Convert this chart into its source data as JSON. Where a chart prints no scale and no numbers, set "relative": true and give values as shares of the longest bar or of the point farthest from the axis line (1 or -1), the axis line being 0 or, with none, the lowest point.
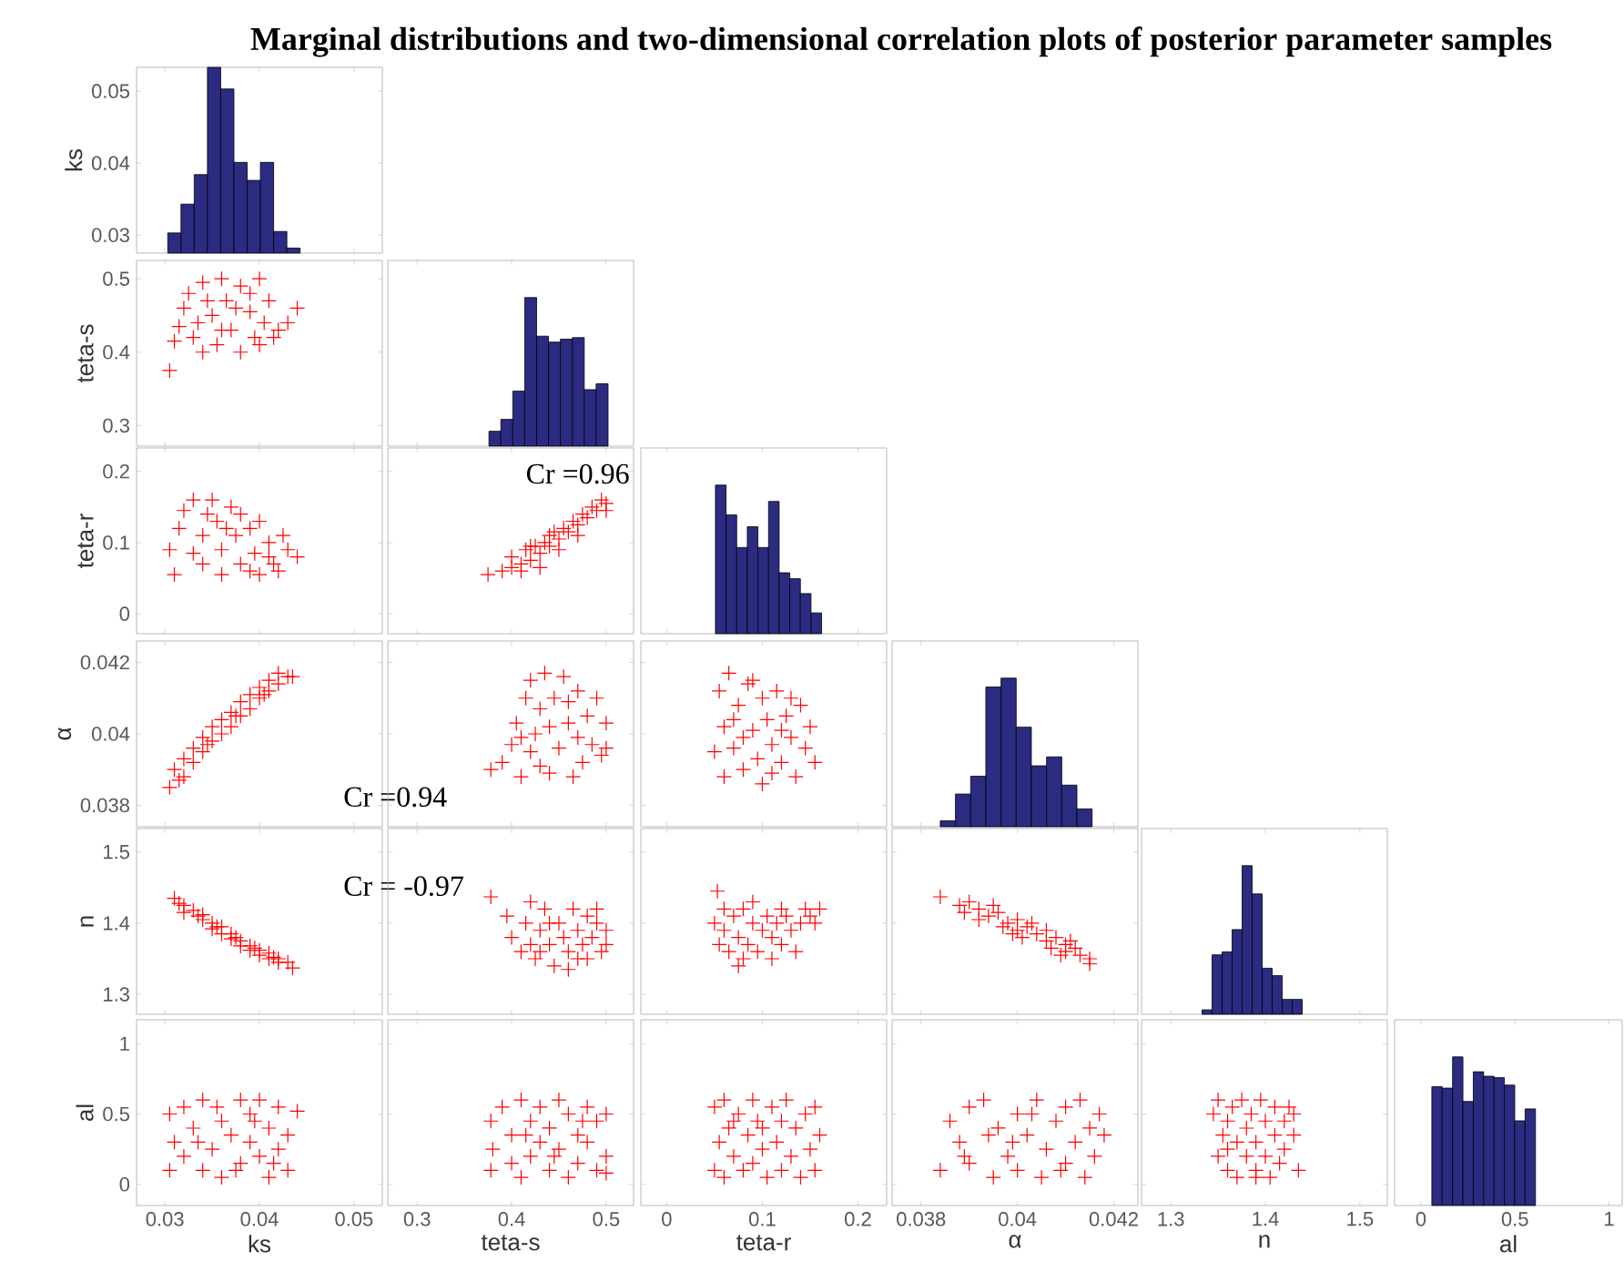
{
  "chart_data": [
    {
      "type": "other",
      "title": "Marginal distributions and two-dimensional correlation plots of posterior parameter samples"
    },
    {
      "type": "histogram",
      "ylabel": "ks",
      "bins": [
        0.0303,
        0.0317,
        0.0331,
        0.0345,
        0.0359,
        0.0373,
        0.0387,
        0.0401,
        0.0415,
        0.0429,
        0.0443
      ],
      "values": [
        0.0303,
        0.0343,
        0.0384,
        0.0533,
        0.0503,
        0.0401,
        0.0376,
        0.0401,
        0.0305,
        0.0282
      ],
      "color": "#2b2b82",
      "xlim": [
        0.027,
        0.053
      ],
      "ylim": [
        0.0275,
        0.0533
      ],
      "xticks": [
        0.03,
        0.04,
        0.05
      ],
      "yticks": [
        0.03,
        0.04,
        0.05
      ],
      "tick_labels": "y"
    },
    {
      "type": "scatter",
      "ylabel": "teta-s",
      "marker": "cross",
      "color": "#ff0000",
      "xlim": [
        0.027,
        0.053
      ],
      "ylim": [
        0.272,
        0.525
      ],
      "xticks": [
        0.03,
        0.04,
        0.05
      ],
      "yticks": [
        0.3,
        0.4,
        0.5
      ],
      "tick_labels": "y",
      "x": [
        0.0305,
        0.031,
        0.0315,
        0.032,
        0.0325,
        0.033,
        0.034,
        0.034,
        0.035,
        0.0355,
        0.036,
        0.0365,
        0.037,
        0.038,
        0.038,
        0.039,
        0.0395,
        0.04,
        0.0405,
        0.041,
        0.0415,
        0.042,
        0.043,
        0.044,
        0.0335,
        0.0375,
        0.036,
        0.039,
        0.0345,
        0.04
      ],
      "values": [
        0.375,
        0.415,
        0.435,
        0.46,
        0.48,
        0.42,
        0.4,
        0.495,
        0.45,
        0.41,
        0.5,
        0.47,
        0.43,
        0.4,
        0.49,
        0.455,
        0.42,
        0.5,
        0.44,
        0.47,
        0.42,
        0.43,
        0.44,
        0.46,
        0.44,
        0.46,
        0.43,
        0.48,
        0.47,
        0.41
      ]
    },
    {
      "type": "bar",
      "relative": true,
      "x": [
        0.3823,
        0.3949,
        0.4075,
        0.4201,
        0.4327,
        0.4453,
        0.4579,
        0.4705,
        0.4831,
        0.4957
      ],
      "values": [
        0.1,
        0.18,
        0.37,
        1,
        0.74,
        0.7,
        0.72,
        0.73,
        0.38,
        0.42
      ],
      "color": "#2b2b82",
      "xlim": [
        0.269,
        0.529
      ],
      "xticks": [
        0.3,
        0.4,
        0.5
      ],
      "tick_labels": false
    },
    {
      "type": "scatter",
      "ylabel": "teta-r",
      "marker": "cross",
      "color": "#ff0000",
      "xlim": [
        0.027,
        0.053
      ],
      "ylim": [
        -0.028,
        0.233
      ],
      "xticks": [
        0.03,
        0.04,
        0.05
      ],
      "yticks": [
        0,
        0.1,
        0.2
      ],
      "tick_labels": "y",
      "x": [
        0.031,
        0.0305,
        0.0315,
        0.032,
        0.033,
        0.034,
        0.034,
        0.035,
        0.0355,
        0.036,
        0.036,
        0.037,
        0.0375,
        0.038,
        0.038,
        0.039,
        0.0395,
        0.04,
        0.04,
        0.041,
        0.0415,
        0.042,
        0.043,
        0.044,
        0.0425,
        0.033,
        0.0365,
        0.039,
        0.0345,
        0.041
      ],
      "values": [
        0.055,
        0.09,
        0.12,
        0.145,
        0.16,
        0.11,
        0.07,
        0.16,
        0.13,
        0.09,
        0.055,
        0.15,
        0.11,
        0.07,
        0.14,
        0.12,
        0.085,
        0.055,
        0.13,
        0.1,
        0.07,
        0.06,
        0.09,
        0.08,
        0.11,
        0.085,
        0.12,
        0.06,
        0.14,
        0.08
      ]
    },
    {
      "type": "scatter",
      "marker": "cross",
      "color": "#ff0000",
      "xlim": [
        0.269,
        0.529
      ],
      "ylim": [
        -0.028,
        0.233
      ],
      "xticks": [
        0.3,
        0.4,
        0.5
      ],
      "yticks": [
        0,
        0.1,
        0.2
      ],
      "tick_labels": false,
      "annotations": [
        "Cr =0.96"
      ],
      "x": [
        0.375,
        0.39,
        0.4,
        0.4,
        0.41,
        0.415,
        0.42,
        0.425,
        0.43,
        0.435,
        0.44,
        0.445,
        0.45,
        0.455,
        0.46,
        0.465,
        0.47,
        0.475,
        0.48,
        0.485,
        0.49,
        0.495,
        0.5,
        0.5,
        0.41,
        0.43,
        0.45,
        0.47,
        0.44,
        0.42
      ],
      "values": [
        0.055,
        0.06,
        0.065,
        0.08,
        0.07,
        0.09,
        0.075,
        0.095,
        0.085,
        0.1,
        0.095,
        0.115,
        0.105,
        0.12,
        0.115,
        0.13,
        0.125,
        0.14,
        0.135,
        0.15,
        0.145,
        0.16,
        0.155,
        0.145,
        0.06,
        0.065,
        0.09,
        0.11,
        0.11,
        0.095
      ]
    },
    {
      "type": "bar",
      "relative": true,
      "x": [
        0.05655,
        0.06765,
        0.07875,
        0.08985,
        0.10095,
        0.11205,
        0.12315,
        0.13425,
        0.14535,
        0.15645
      ],
      "values": [
        1,
        0.8,
        0.58,
        0.72,
        0.58,
        0.89,
        0.41,
        0.37,
        0.27,
        0.14
      ],
      "color": "#2b2b82",
      "xlim": [
        -0.027,
        0.23
      ],
      "xticks": [
        0,
        0.1,
        0.2
      ],
      "tick_labels": false
    },
    {
      "type": "scatter",
      "ylabel": "α",
      "marker": "cross",
      "color": "#ff0000",
      "xlim": [
        0.027,
        0.053
      ],
      "ylim": [
        0.0374,
        0.0426
      ],
      "xticks": [
        0.03,
        0.04,
        0.05
      ],
      "yticks": [
        0.038,
        0.04,
        0.042
      ],
      "tick_labels": "y",
      "annotations": [
        "Cr =0.94"
      ],
      "x": [
        0.0305,
        0.031,
        0.032,
        0.032,
        0.033,
        0.033,
        0.034,
        0.034,
        0.035,
        0.035,
        0.036,
        0.036,
        0.037,
        0.037,
        0.038,
        0.038,
        0.039,
        0.039,
        0.04,
        0.04,
        0.041,
        0.041,
        0.042,
        0.042,
        0.043,
        0.0435,
        0.0315,
        0.0345,
        0.0375,
        0.0405
      ],
      "values": [
        0.0385,
        0.039,
        0.0388,
        0.0393,
        0.0392,
        0.0396,
        0.0395,
        0.0399,
        0.0398,
        0.0402,
        0.04,
        0.0404,
        0.0402,
        0.0406,
        0.0405,
        0.0409,
        0.0407,
        0.0411,
        0.041,
        0.0413,
        0.0412,
        0.0415,
        0.0414,
        0.0417,
        0.0416,
        0.0416,
        0.0387,
        0.0397,
        0.0405,
        0.0411
      ]
    },
    {
      "type": "scatter",
      "marker": "cross",
      "color": "#ff0000",
      "xlim": [
        0.269,
        0.529
      ],
      "ylim": [
        0.0374,
        0.0426
      ],
      "xticks": [
        0.3,
        0.4,
        0.5
      ],
      "yticks": [
        0.038,
        0.04,
        0.042
      ],
      "tick_labels": false,
      "x": [
        0.378,
        0.39,
        0.4,
        0.405,
        0.41,
        0.415,
        0.42,
        0.42,
        0.425,
        0.43,
        0.435,
        0.44,
        0.44,
        0.445,
        0.45,
        0.455,
        0.46,
        0.465,
        0.47,
        0.47,
        0.475,
        0.48,
        0.485,
        0.49,
        0.495,
        0.5,
        0.5,
        0.43,
        0.46,
        0.41
      ],
      "values": [
        0.039,
        0.0392,
        0.0397,
        0.0403,
        0.0388,
        0.041,
        0.0395,
        0.0415,
        0.04,
        0.0391,
        0.0417,
        0.0402,
        0.0389,
        0.041,
        0.0396,
        0.0416,
        0.0403,
        0.0388,
        0.0399,
        0.0412,
        0.0392,
        0.0405,
        0.0397,
        0.041,
        0.0394,
        0.0403,
        0.0396,
        0.0407,
        0.0409,
        0.0399
      ]
    },
    {
      "type": "scatter",
      "marker": "cross",
      "color": "#ff0000",
      "xlim": [
        -0.027,
        0.23
      ],
      "ylim": [
        0.0374,
        0.0426
      ],
      "xticks": [
        0,
        0.1,
        0.2
      ],
      "yticks": [
        0.038,
        0.04,
        0.042
      ],
      "tick_labels": false,
      "x": [
        0.05,
        0.055,
        0.06,
        0.06,
        0.065,
        0.07,
        0.075,
        0.08,
        0.085,
        0.09,
        0.095,
        0.1,
        0.1,
        0.105,
        0.11,
        0.115,
        0.12,
        0.125,
        0.13,
        0.135,
        0.14,
        0.145,
        0.15,
        0.155,
        0.07,
        0.09,
        0.11,
        0.13,
        0.08,
        0.12
      ],
      "values": [
        0.0395,
        0.0412,
        0.0402,
        0.0388,
        0.0417,
        0.0396,
        0.0408,
        0.039,
        0.0414,
        0.0401,
        0.0393,
        0.041,
        0.0386,
        0.0404,
        0.0397,
        0.0412,
        0.0392,
        0.0405,
        0.0399,
        0.0388,
        0.0408,
        0.0396,
        0.0402,
        0.0392,
        0.0404,
        0.0415,
        0.0389,
        0.041,
        0.0399,
        0.0401
      ]
    },
    {
      "type": "bar",
      "relative": true,
      "x": [
        0.0385575,
        0.0388725,
        0.0391875,
        0.0395025,
        0.0398175,
        0.0401325,
        0.0404475,
        0.0407625,
        0.0410775,
        0.0413925
      ],
      "values": [
        0.04,
        0.22,
        0.34,
        0.94,
        1,
        0.67,
        0.41,
        0.47,
        0.28,
        0.12
      ],
      "color": "#2b2b82",
      "xlim": [
        0.0374,
        0.0425
      ],
      "xticks": [
        0.038,
        0.04,
        0.042
      ],
      "tick_labels": false
    },
    {
      "type": "scatter",
      "ylabel": "n",
      "marker": "cross",
      "color": "#ff0000",
      "xlim": [
        0.027,
        0.053
      ],
      "ylim": [
        1.272,
        1.533
      ],
      "xticks": [
        0.03,
        0.04,
        0.05
      ],
      "yticks": [
        1.3,
        1.4,
        1.5
      ],
      "tick_labels": "y",
      "annotations": [
        "Cr = -0.97"
      ],
      "x": [
        0.031,
        0.032,
        0.032,
        0.033,
        0.034,
        0.034,
        0.035,
        0.035,
        0.036,
        0.036,
        0.037,
        0.037,
        0.038,
        0.038,
        0.039,
        0.039,
        0.04,
        0.04,
        0.041,
        0.041,
        0.042,
        0.042,
        0.043,
        0.0435,
        0.0315,
        0.0335,
        0.0355,
        0.0375,
        0.0395,
        0.0415
      ],
      "values": [
        1.435,
        1.425,
        1.415,
        1.418,
        1.405,
        1.412,
        1.4,
        1.392,
        1.395,
        1.385,
        1.385,
        1.378,
        1.375,
        1.368,
        1.368,
        1.362,
        1.362,
        1.355,
        1.358,
        1.35,
        1.35,
        1.345,
        1.345,
        1.337,
        1.428,
        1.41,
        1.395,
        1.38,
        1.365,
        1.352
      ]
    },
    {
      "type": "scatter",
      "marker": "cross",
      "color": "#ff0000",
      "xlim": [
        0.269,
        0.529
      ],
      "ylim": [
        1.272,
        1.533
      ],
      "xticks": [
        0.3,
        0.4,
        0.5
      ],
      "yticks": [
        1.3,
        1.4,
        1.5
      ],
      "tick_labels": false,
      "x": [
        0.378,
        0.395,
        0.4,
        0.41,
        0.415,
        0.42,
        0.425,
        0.43,
        0.435,
        0.44,
        0.445,
        0.45,
        0.455,
        0.46,
        0.46,
        0.465,
        0.47,
        0.475,
        0.48,
        0.48,
        0.485,
        0.49,
        0.495,
        0.5,
        0.5,
        0.44,
        0.42,
        0.47,
        0.43,
        0.49
      ],
      "values": [
        1.437,
        1.41,
        1.38,
        1.36,
        1.4,
        1.43,
        1.35,
        1.39,
        1.42,
        1.37,
        1.34,
        1.4,
        1.38,
        1.335,
        1.36,
        1.42,
        1.39,
        1.37,
        1.41,
        1.35,
        1.38,
        1.4,
        1.36,
        1.39,
        1.37,
        1.4,
        1.37,
        1.35,
        1.36,
        1.42
      ]
    },
    {
      "type": "scatter",
      "marker": "cross",
      "color": "#ff0000",
      "xlim": [
        -0.027,
        0.23
      ],
      "ylim": [
        1.272,
        1.533
      ],
      "xticks": [
        0,
        0.1,
        0.2
      ],
      "yticks": [
        1.3,
        1.4,
        1.5
      ],
      "tick_labels": false,
      "x": [
        0.053,
        0.05,
        0.055,
        0.06,
        0.065,
        0.07,
        0.075,
        0.075,
        0.08,
        0.085,
        0.09,
        0.095,
        0.1,
        0.105,
        0.11,
        0.11,
        0.115,
        0.12,
        0.125,
        0.13,
        0.135,
        0.14,
        0.145,
        0.15,
        0.155,
        0.16,
        0.06,
        0.09,
        0.12,
        0.08
      ],
      "values": [
        1.445,
        1.4,
        1.37,
        1.39,
        1.36,
        1.41,
        1.38,
        1.34,
        1.42,
        1.37,
        1.4,
        1.36,
        1.39,
        1.41,
        1.35,
        1.38,
        1.4,
        1.37,
        1.41,
        1.39,
        1.36,
        1.4,
        1.42,
        1.41,
        1.4,
        1.42,
        1.42,
        1.43,
        1.42,
        1.35
      ]
    },
    {
      "type": "scatter",
      "marker": "cross",
      "color": "#ff0000",
      "xlim": [
        0.0374,
        0.0425
      ],
      "ylim": [
        1.272,
        1.533
      ],
      "xticks": [
        0.038,
        0.04,
        0.042
      ],
      "yticks": [
        1.3,
        1.4,
        1.5
      ],
      "tick_labels": false,
      "x": [
        0.0384,
        0.0388,
        0.039,
        0.0392,
        0.0394,
        0.0396,
        0.0398,
        0.04,
        0.04,
        0.0402,
        0.0404,
        0.0406,
        0.0406,
        0.0408,
        0.041,
        0.041,
        0.0412,
        0.0413,
        0.0415,
        0.0415,
        0.0392,
        0.0395,
        0.0399,
        0.0403,
        0.0407,
        0.0411,
        0.0389,
        0.0397,
        0.0409,
        0.0401
      ],
      "values": [
        1.437,
        1.425,
        1.43,
        1.42,
        1.41,
        1.415,
        1.4,
        1.405,
        1.39,
        1.395,
        1.385,
        1.39,
        1.375,
        1.38,
        1.37,
        1.36,
        1.365,
        1.355,
        1.35,
        1.343,
        1.405,
        1.425,
        1.385,
        1.4,
        1.365,
        1.375,
        1.415,
        1.395,
        1.355,
        1.38
      ]
    },
    {
      "type": "bar",
      "relative": true,
      "x": [
        1.3383,
        1.3489,
        1.3595,
        1.3701,
        1.3807,
        1.3913,
        1.4019,
        1.4125,
        1.4231,
        1.4337
      ],
      "values": [
        0.03,
        0.4,
        0.42,
        0.57,
        1,
        0.81,
        0.31,
        0.26,
        0.1,
        0.1
      ],
      "color": "#2b2b82",
      "xlim": [
        1.269,
        1.529
      ],
      "xticks": [
        1.3,
        1.4,
        1.5
      ],
      "tick_labels": false
    },
    {
      "type": "scatter",
      "ylabel": "al",
      "xlabel": "ks",
      "marker": "cross",
      "color": "#ff0000",
      "xlim": [
        0.027,
        0.053
      ],
      "ylim": [
        -0.15,
        1.17
      ],
      "xticks": [
        0.03,
        0.04,
        0.05
      ],
      "yticks": [
        0,
        0.5,
        1
      ],
      "x": [
        0.0305,
        0.0305,
        0.031,
        0.032,
        0.032,
        0.033,
        0.034,
        0.034,
        0.035,
        0.036,
        0.036,
        0.037,
        0.038,
        0.038,
        0.039,
        0.039,
        0.04,
        0.04,
        0.041,
        0.041,
        0.042,
        0.042,
        0.043,
        0.043,
        0.044,
        0.0335,
        0.0355,
        0.0375,
        0.0395,
        0.0415
      ],
      "values": [
        0.1,
        0.5,
        0.3,
        0.2,
        0.55,
        0.4,
        0.1,
        0.6,
        0.25,
        0.45,
        0.05,
        0.35,
        0.6,
        0.15,
        0.5,
        0.3,
        0.2,
        0.6,
        0.4,
        0.05,
        0.55,
        0.25,
        0.1,
        0.35,
        0.52,
        0.3,
        0.55,
        0.1,
        0.45,
        0.15
      ]
    },
    {
      "type": "scatter",
      "xlabel": "teta-s",
      "marker": "cross",
      "color": "#ff0000",
      "xlim": [
        0.269,
        0.529
      ],
      "ylim": [
        -0.15,
        1.17
      ],
      "xticks": [
        0.3,
        0.4,
        0.5
      ],
      "yticks": [
        0,
        0.5,
        1
      ],
      "tick_labels": "x",
      "x": [
        0.378,
        0.378,
        0.38,
        0.39,
        0.4,
        0.4,
        0.41,
        0.41,
        0.42,
        0.42,
        0.43,
        0.43,
        0.44,
        0.44,
        0.45,
        0.45,
        0.46,
        0.46,
        0.47,
        0.47,
        0.48,
        0.48,
        0.49,
        0.49,
        0.5,
        0.5,
        0.415,
        0.445,
        0.475,
        0.5
      ],
      "values": [
        0.1,
        0.45,
        0.25,
        0.55,
        0.15,
        0.35,
        0.6,
        0.05,
        0.45,
        0.2,
        0.3,
        0.55,
        0.1,
        0.4,
        0.6,
        0.25,
        0.05,
        0.5,
        0.35,
        0.15,
        0.55,
        0.3,
        0.1,
        0.45,
        0.2,
        0.5,
        0.35,
        0.2,
        0.45,
        0.08
      ]
    },
    {
      "type": "scatter",
      "xlabel": "teta-r",
      "marker": "cross",
      "color": "#ff0000",
      "xlim": [
        -0.027,
        0.23
      ],
      "ylim": [
        -0.15,
        1.17
      ],
      "xticks": [
        0,
        0.1,
        0.2
      ],
      "yticks": [
        0,
        0.5,
        1
      ],
      "tick_labels": "x",
      "x": [
        0.05,
        0.05,
        0.055,
        0.06,
        0.06,
        0.065,
        0.07,
        0.075,
        0.08,
        0.085,
        0.09,
        0.09,
        0.095,
        0.1,
        0.105,
        0.11,
        0.115,
        0.12,
        0.12,
        0.125,
        0.13,
        0.135,
        0.14,
        0.145,
        0.15,
        0.155,
        0.16,
        0.155,
        0.07,
        0.1
      ],
      "values": [
        0.1,
        0.55,
        0.3,
        0.6,
        0.05,
        0.4,
        0.2,
        0.5,
        0.1,
        0.35,
        0.6,
        0.15,
        0.45,
        0.25,
        0.05,
        0.55,
        0.3,
        0.1,
        0.45,
        0.6,
        0.2,
        0.4,
        0.05,
        0.5,
        0.25,
        0.55,
        0.35,
        0.1,
        0.45,
        0.4
      ]
    },
    {
      "type": "scatter",
      "xlabel": "α",
      "marker": "cross",
      "color": "#ff0000",
      "xlim": [
        0.0374,
        0.0425
      ],
      "ylim": [
        -0.15,
        1.17
      ],
      "xticks": [
        0.038,
        0.04,
        0.042
      ],
      "yticks": [
        0,
        0.5,
        1
      ],
      "tick_labels": "x",
      "x": [
        0.0384,
        0.0386,
        0.0388,
        0.039,
        0.039,
        0.0393,
        0.0395,
        0.0396,
        0.0398,
        0.04,
        0.04,
        0.0402,
        0.0404,
        0.0405,
        0.0406,
        0.0408,
        0.041,
        0.041,
        0.0412,
        0.0413,
        0.0414,
        0.0415,
        0.0416,
        0.0417,
        0.0418,
        0.0394,
        0.0399,
        0.0403,
        0.0409,
        0.0389
      ],
      "values": [
        0.1,
        0.45,
        0.3,
        0.55,
        0.15,
        0.6,
        0.05,
        0.4,
        0.2,
        0.5,
        0.1,
        0.35,
        0.6,
        0.05,
        0.25,
        0.45,
        0.15,
        0.55,
        0.3,
        0.6,
        0.05,
        0.4,
        0.2,
        0.5,
        0.35,
        0.35,
        0.3,
        0.5,
        0.1,
        0.2
      ]
    },
    {
      "type": "scatter",
      "xlabel": "n",
      "marker": "cross",
      "color": "#ff0000",
      "xlim": [
        1.269,
        1.529
      ],
      "ylim": [
        -0.15,
        1.17
      ],
      "xticks": [
        1.3,
        1.4,
        1.5
      ],
      "yticks": [
        0,
        0.5,
        1
      ],
      "tick_labels": "x",
      "x": [
        1.345,
        1.35,
        1.35,
        1.355,
        1.36,
        1.36,
        1.365,
        1.37,
        1.37,
        1.375,
        1.38,
        1.38,
        1.385,
        1.39,
        1.39,
        1.395,
        1.4,
        1.4,
        1.405,
        1.41,
        1.41,
        1.415,
        1.42,
        1.42,
        1.425,
        1.43,
        1.43,
        1.435,
        1.36,
        1.39
      ],
      "values": [
        0.5,
        0.2,
        0.6,
        0.35,
        0.1,
        0.45,
        0.55,
        0.05,
        0.3,
        0.6,
        0.2,
        0.4,
        0.5,
        0.1,
        0.3,
        0.6,
        0.2,
        0.45,
        0.05,
        0.35,
        0.55,
        0.15,
        0.45,
        0.25,
        0.55,
        0.35,
        0.5,
        0.1,
        0.25,
        0.05
      ]
    },
    {
      "type": "bar",
      "relative": true,
      "xlabel": "al",
      "x": [
        0.08555,
        0.14065,
        0.19575,
        0.25085,
        0.30595,
        0.36105,
        0.41615,
        0.47125,
        0.52635,
        0.58145
      ],
      "values": [
        0.8,
        0.79,
        1,
        0.7,
        0.9,
        0.87,
        0.86,
        0.81,
        0.57,
        0.65
      ],
      "color": "#2b2b82",
      "xlim": [
        -0.14,
        1.07
      ],
      "xticks": [
        0,
        0.5,
        1
      ],
      "tick_labels": "x"
    }
  ]
}
